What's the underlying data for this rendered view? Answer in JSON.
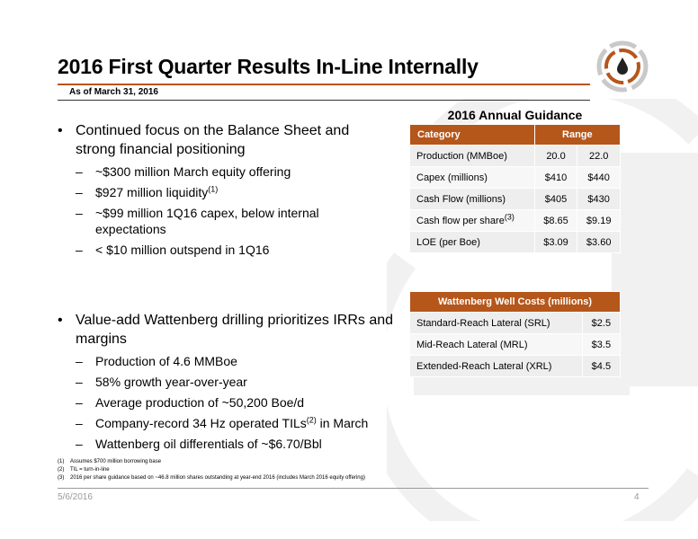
{
  "header": {
    "title": "2016 First Quarter Results In-Line Internally",
    "subtitle": "As of March 31, 2016"
  },
  "colors": {
    "accent": "#b5561b",
    "dark": "#333333"
  },
  "bullets_1": {
    "main": "Continued focus on the Balance Sheet and strong financial positioning",
    "subs": [
      "~$300 million March equity offering",
      "$927 million liquidity",
      "~$99 million 1Q16 capex, below internal expectations",
      "< $10 million outspend in 1Q16"
    ],
    "sup_liquidity": "(1)"
  },
  "bullets_2": {
    "main": "Value-add Wattenberg drilling prioritizes IRRs and margins",
    "subs": [
      "Production of 4.6 MMBoe",
      "58% growth year-over-year",
      "Average production of ~50,200 Boe/d",
      "Company-record 34 Hz operated TILs",
      "Wattenberg oil differentials of ~$6.70/Bbl"
    ],
    "tils_sup": "(2)",
    "tils_suffix": " in March"
  },
  "guidance": {
    "title": "2016 Annual Guidance",
    "col_category": "Category",
    "col_range": "Range",
    "rows": [
      {
        "label": "Production (MMBoe)",
        "low": "20.0",
        "high": "22.0"
      },
      {
        "label": "Capex (millions)",
        "low": "$410",
        "high": "$440"
      },
      {
        "label": "Cash Flow (millions)",
        "low": "$405",
        "high": "$430"
      },
      {
        "label": "Cash flow per share",
        "low": "$8.65",
        "high": "$9.19"
      },
      {
        "label": "LOE (per Boe)",
        "low": "$3.09",
        "high": "$3.60"
      }
    ],
    "cfps_sup": "(3)"
  },
  "well_costs": {
    "title": "Wattenberg Well Costs (millions)",
    "rows": [
      {
        "label": "Standard-Reach Lateral (SRL)",
        "value": "$2.5"
      },
      {
        "label": "Mid-Reach Lateral (MRL)",
        "value": "$3.5"
      },
      {
        "label": "Extended-Reach Lateral (XRL)",
        "value": "$4.5"
      }
    ]
  },
  "footnotes": [
    {
      "num": "(1)",
      "text": "Assumes $700 million borrowing base"
    },
    {
      "num": "(2)",
      "text": "TIL = turn-in-line"
    },
    {
      "num": "(3)",
      "text": "2016 per share guidance based on ~46.8 million shares outstanding at year-end 2016 (includes March 2016 equity offering)"
    }
  ],
  "footer": {
    "date": "5/6/2016",
    "page": "4"
  },
  "icons": {
    "logo": "company-logo",
    "decoration": "background-rings"
  }
}
